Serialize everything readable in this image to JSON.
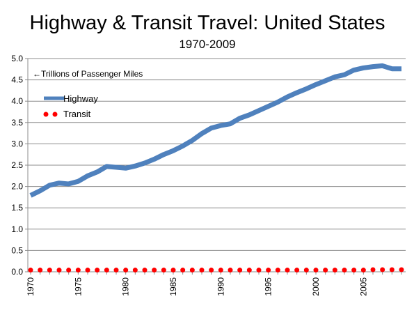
{
  "chart_data": {
    "type": "line",
    "title": "Highway & Transit Travel: United States",
    "subtitle": "1970-2009",
    "annotation": "←Trillions of Passenger Miles",
    "x": [
      1970,
      1971,
      1972,
      1973,
      1974,
      1975,
      1976,
      1977,
      1978,
      1979,
      1980,
      1981,
      1982,
      1983,
      1984,
      1985,
      1986,
      1987,
      1988,
      1989,
      1990,
      1991,
      1992,
      1993,
      1994,
      1995,
      1996,
      1997,
      1998,
      1999,
      2000,
      2001,
      2002,
      2003,
      2004,
      2005,
      2006,
      2007,
      2008,
      2009
    ],
    "x_tick_labels": [
      "1970",
      "1971",
      "1972",
      "1973",
      "1974",
      "1975",
      "1976",
      "1977",
      "1978",
      "1979",
      "1980",
      "1981",
      "1982",
      "1983",
      "1984",
      "1985",
      "1986",
      "1987",
      "1988",
      "1989",
      "1990",
      "1991",
      "1992",
      "1993",
      "1994",
      "1995",
      "1996",
      "1997",
      "1998",
      "1999",
      "2000",
      "2001",
      "2002",
      "2003",
      "2004",
      "2005",
      "2006",
      "2007",
      "2008",
      "2009"
    ],
    "x_ticks_labeled": [
      "1970",
      "1975",
      "1980",
      "1985",
      "1990",
      "1995",
      "2000",
      "2005"
    ],
    "y_ticks": [
      "0.0",
      "0.5",
      "1.0",
      "1.5",
      "2.0",
      "2.5",
      "3.0",
      "3.5",
      "4.0",
      "4.5",
      "5.0"
    ],
    "ylim": [
      0,
      5
    ],
    "grid": "horizontal",
    "legend_position": "top-left",
    "series": [
      {
        "name": "Highway",
        "style": "line",
        "color": "#4f81bd",
        "values": [
          1.79,
          1.9,
          2.03,
          2.08,
          2.06,
          2.12,
          2.25,
          2.34,
          2.47,
          2.45,
          2.43,
          2.48,
          2.55,
          2.64,
          2.75,
          2.84,
          2.95,
          3.08,
          3.24,
          3.37,
          3.43,
          3.47,
          3.6,
          3.68,
          3.78,
          3.88,
          3.98,
          4.1,
          4.2,
          4.29,
          4.39,
          4.48,
          4.57,
          4.62,
          4.73,
          4.78,
          4.81,
          4.83,
          4.76,
          4.76
        ]
      },
      {
        "name": "Transit",
        "style": "dots",
        "color": "#ff0000",
        "values": [
          0.04,
          0.04,
          0.04,
          0.04,
          0.04,
          0.04,
          0.04,
          0.04,
          0.04,
          0.04,
          0.04,
          0.04,
          0.04,
          0.04,
          0.04,
          0.04,
          0.04,
          0.04,
          0.04,
          0.04,
          0.04,
          0.04,
          0.04,
          0.04,
          0.04,
          0.04,
          0.04,
          0.04,
          0.04,
          0.04,
          0.04,
          0.04,
          0.04,
          0.04,
          0.04,
          0.04,
          0.05,
          0.05,
          0.05,
          0.05
        ]
      }
    ]
  }
}
